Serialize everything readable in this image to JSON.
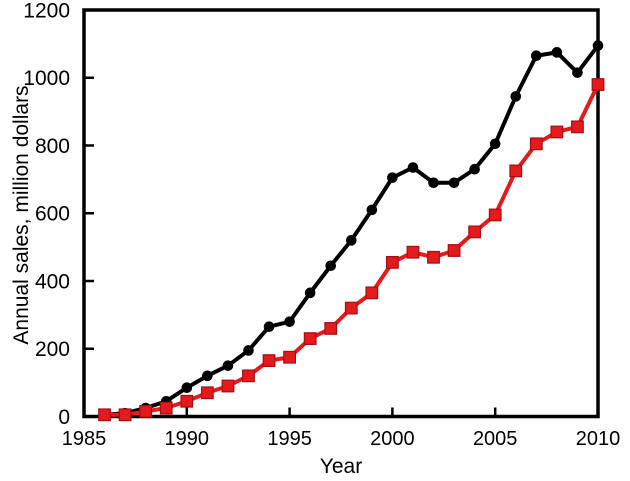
{
  "figure": {
    "background": "#ffffff",
    "frame_color": "#000000"
  },
  "chart_data": {
    "type": "line",
    "title": "",
    "xlabel": "Year",
    "ylabel": "Annual sales, million dollars",
    "xlim": [
      1985,
      2010
    ],
    "ylim": [
      0,
      1200
    ],
    "xticks": [
      1985,
      1990,
      1995,
      2000,
      2005,
      2010
    ],
    "yticks": [
      0,
      200,
      400,
      600,
      800,
      1000,
      1200
    ],
    "grid": false,
    "legend_position": "none",
    "x": [
      1986,
      1987,
      1988,
      1989,
      1990,
      1991,
      1992,
      1993,
      1994,
      1995,
      1996,
      1997,
      1998,
      1999,
      2000,
      2001,
      2002,
      2003,
      2004,
      2005,
      2006,
      2007,
      2008,
      2009,
      2010
    ],
    "series": [
      {
        "name": "black-circle-series",
        "color": "#000000",
        "marker": "circle",
        "values": [
          5,
          10,
          25,
          45,
          85,
          120,
          150,
          195,
          265,
          280,
          365,
          445,
          520,
          610,
          705,
          735,
          690,
          690,
          730,
          805,
          945,
          1065,
          1075,
          1015,
          1095
        ]
      },
      {
        "name": "red-square-series",
        "color": "#e41a1c",
        "marker_edge_color": "#a50f12",
        "marker": "square",
        "values": [
          5,
          5,
          15,
          25,
          45,
          70,
          90,
          120,
          165,
          175,
          230,
          260,
          320,
          365,
          455,
          485,
          470,
          490,
          545,
          595,
          725,
          805,
          840,
          855,
          980
        ]
      }
    ]
  }
}
